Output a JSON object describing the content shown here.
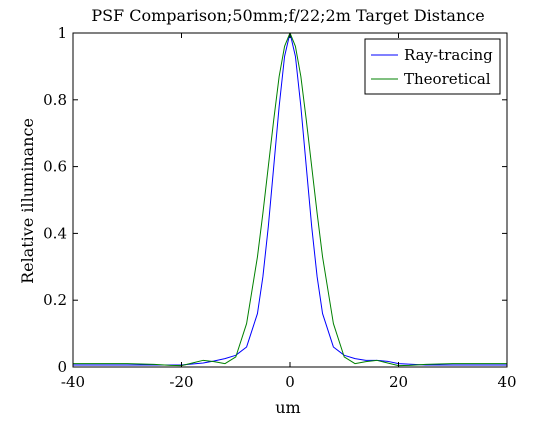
{
  "chart_data": {
    "type": "line",
    "title": "PSF Comparison;50mm;f/22;2m Target Distance",
    "xlabel": "um",
    "ylabel": "Relative illuminance",
    "xlim": [
      -40,
      40
    ],
    "ylim": [
      0,
      1
    ],
    "xticks": [
      -40,
      -20,
      0,
      20,
      40
    ],
    "xtick_labels": [
      "-40",
      "-20",
      "0",
      "20",
      "40"
    ],
    "yticks": [
      0,
      0.2,
      0.4,
      0.6,
      0.8,
      1
    ],
    "ytick_labels": [
      "0",
      "0.2",
      "0.4",
      "0.6",
      "0.8",
      "1"
    ],
    "grid": false,
    "legend_position": "top-right",
    "series": [
      {
        "name": "Ray-tracing",
        "color": "#0000ff",
        "x": [
          -40,
          -30,
          -25,
          -20,
          -16,
          -14,
          -12,
          -10,
          -8,
          -6,
          -5,
          -4,
          -3,
          -2,
          -1,
          0,
          1,
          2,
          3,
          4,
          5,
          6,
          8,
          10,
          12,
          14,
          16,
          18,
          20,
          25,
          30,
          40
        ],
        "y": [
          0.006,
          0.006,
          0.006,
          0.006,
          0.012,
          0.018,
          0.025,
          0.035,
          0.06,
          0.16,
          0.27,
          0.42,
          0.6,
          0.78,
          0.93,
          1.0,
          0.93,
          0.78,
          0.6,
          0.42,
          0.27,
          0.16,
          0.06,
          0.035,
          0.025,
          0.02,
          0.02,
          0.017,
          0.01,
          0.006,
          0.006,
          0.006
        ]
      },
      {
        "name": "Theoretical",
        "color": "#008000",
        "x": [
          -40,
          -30,
          -25,
          -22,
          -20,
          -18,
          -16,
          -14,
          -12,
          -10,
          -8,
          -6,
          -5,
          -4,
          -3,
          -2,
          -1,
          0,
          1,
          2,
          3,
          4,
          5,
          6,
          8,
          10,
          12,
          14,
          16,
          18,
          20,
          22,
          25,
          30,
          40
        ],
        "y": [
          0.01,
          0.01,
          0.008,
          0.005,
          0.004,
          0.012,
          0.02,
          0.016,
          0.01,
          0.03,
          0.13,
          0.33,
          0.46,
          0.6,
          0.74,
          0.87,
          0.96,
          1.0,
          0.96,
          0.87,
          0.74,
          0.6,
          0.46,
          0.33,
          0.13,
          0.03,
          0.01,
          0.016,
          0.02,
          0.012,
          0.004,
          0.005,
          0.008,
          0.01,
          0.01
        ]
      }
    ]
  }
}
